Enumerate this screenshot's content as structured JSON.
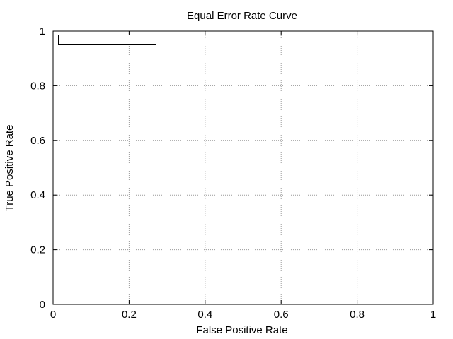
{
  "chart_data": {
    "type": "line",
    "title": "Equal Error Rate Curve",
    "xlabel": "False Positive Rate",
    "ylabel": "True Positive Rate",
    "xlim": [
      0,
      1
    ],
    "ylim": [
      0,
      1
    ],
    "x_ticks": [
      0,
      0.2,
      0.4,
      0.6,
      0.8,
      1
    ],
    "x_tick_labels": [
      "0",
      "0.2",
      "0.4",
      "0.6",
      "0.8",
      "1"
    ],
    "y_ticks": [
      0,
      0.2,
      0.4,
      0.6,
      0.8,
      1
    ],
    "y_tick_labels": [
      "0",
      "0.2",
      "0.4",
      "0.6",
      "0.8",
      "1"
    ],
    "grid": true,
    "grid_style": "dotted",
    "legend": {
      "placement": "top-left",
      "entries": []
    },
    "series": []
  }
}
